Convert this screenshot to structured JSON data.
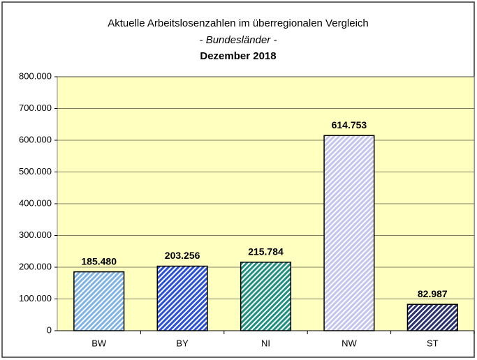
{
  "chart_data": {
    "type": "bar",
    "title": "Aktuelle Arbeitslosenzahlen im überregionalen Vergleich",
    "subtitle": "- Bundesländer -",
    "period": "Dezember 2018",
    "categories": [
      "BW",
      "BY",
      "NI",
      "NW",
      "ST"
    ],
    "values": [
      185480,
      203256,
      215784,
      614753,
      82987
    ],
    "value_labels": [
      "185.480",
      "203.256",
      "215.784",
      "614.753",
      "82.987"
    ],
    "colors": [
      "#7fb2e6",
      "#2a50d8",
      "#1f8f80",
      "#c4c4ee",
      "#28306e"
    ],
    "ylim": [
      0,
      800000
    ],
    "yticks": [
      0,
      {
        "value": 100000,
        "label": "100.000"
      },
      {
        "value": 200000,
        "label": "200.000"
      },
      {
        "value": 300000,
        "label": "300.000"
      },
      {
        "value": 400000,
        "label": "400.000"
      },
      {
        "value": 500000,
        "label": "500.000"
      },
      {
        "value": 600000,
        "label": "600.000"
      },
      {
        "value": 700000,
        "label": "700.000"
      },
      {
        "value": 800000,
        "label": "800.000"
      }
    ],
    "grid": true
  }
}
